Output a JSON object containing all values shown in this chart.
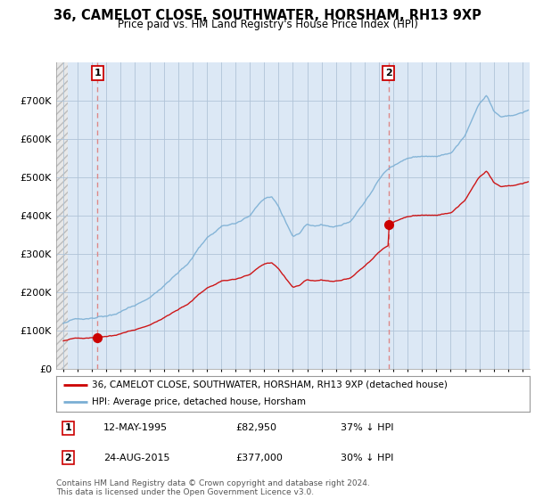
{
  "title": "36, CAMELOT CLOSE, SOUTHWATER, HORSHAM, RH13 9XP",
  "subtitle": "Price paid vs. HM Land Registry's House Price Index (HPI)",
  "legend_line1": "36, CAMELOT CLOSE, SOUTHWATER, HORSHAM, RH13 9XP (detached house)",
  "legend_line2": "HPI: Average price, detached house, Horsham",
  "purchase1_date": "12-MAY-1995",
  "purchase1_price": 82950,
  "purchase1_year": 1995.37,
  "purchase1_info": "37% ↓ HPI",
  "purchase2_date": "24-AUG-2015",
  "purchase2_price": 377000,
  "purchase2_year": 2015.65,
  "purchase2_info": "30% ↓ HPI",
  "footer": "Contains HM Land Registry data © Crown copyright and database right 2024.\nThis data is licensed under the Open Government Licence v3.0.",
  "hpi_color": "#7bafd4",
  "price_color": "#cc0000",
  "bg_color": "#dce8f5",
  "bg_hatch_color": "#cccccc",
  "marker_color": "#cc0000",
  "vline_color": "#dd8888",
  "grid_color": "#b0c4d8",
  "ylim": [
    0,
    800000
  ],
  "yticks": [
    0,
    100000,
    200000,
    300000,
    400000,
    500000,
    600000,
    700000
  ],
  "ytick_labels": [
    "£0",
    "£100K",
    "£200K",
    "£300K",
    "£400K",
    "£500K",
    "£600K",
    "£700K"
  ],
  "xlim_start": 1992.5,
  "xlim_end": 2025.5
}
